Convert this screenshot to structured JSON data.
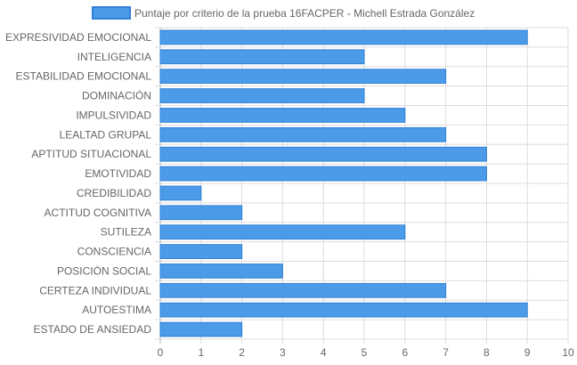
{
  "colors": {
    "bar_fill": "#4c9be8",
    "bar_stroke": "#2f80d6",
    "grid": "#dddddd",
    "axis": "#bbbbbb",
    "text": "#666666"
  },
  "chart_data": {
    "type": "bar",
    "orientation": "horizontal",
    "legend_position": "top",
    "grid": true,
    "xlim": [
      0,
      10
    ],
    "x_ticks": [
      0,
      1,
      2,
      3,
      4,
      5,
      6,
      7,
      8,
      9,
      10
    ],
    "categories": [
      "EXPRESIVIDAD EMOCIONAL",
      "INTELIGENCIA",
      "ESTABILIDAD EMOCIONAL",
      "DOMINACIÓN",
      "IMPULSIVIDAD",
      "LEALTAD GRUPAL",
      "APTITUD SITUACIONAL",
      "EMOTIVIDAD",
      "CREDIBILIDAD",
      "ACTITUD COGNITIVA",
      "SUTILEZA",
      "CONSCIENCIA",
      "POSICIÓN SOCIAL",
      "CERTEZA INDIVIDUAL",
      "AUTOESTIMA",
      "ESTADO DE ANSIEDAD"
    ],
    "series": [
      {
        "name": "Puntaje por criterio de la prueba 16FACPER - Michell Estrada González",
        "values": [
          9,
          5,
          7,
          5,
          6,
          7,
          8,
          8,
          1,
          2,
          6,
          2,
          3,
          7,
          9,
          2
        ]
      }
    ]
  }
}
